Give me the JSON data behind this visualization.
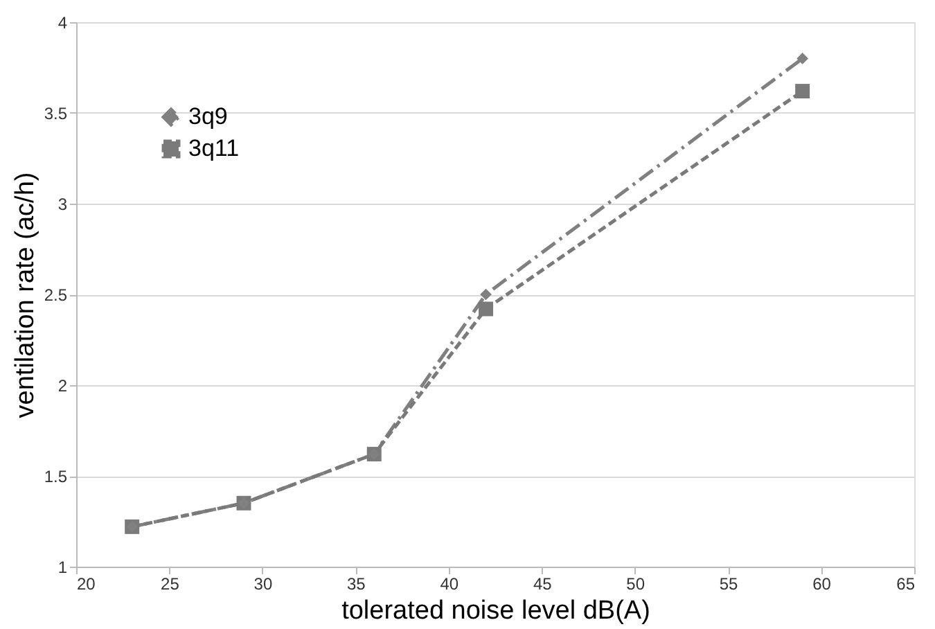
{
  "chart_data": {
    "type": "line",
    "xlabel": "tolerated noise level  dB(A)",
    "ylabel": "ventilation rate  (ac/h)",
    "x": [
      23,
      29,
      36,
      42,
      59
    ],
    "series": [
      {
        "name": "3q9",
        "color": "#808080",
        "values": [
          1.22,
          1.35,
          1.62,
          2.5,
          3.8
        ],
        "marker": "diamond",
        "line_style": "dashdot"
      },
      {
        "name": "3q11",
        "color": "#7a7a7a",
        "values": [
          1.22,
          1.35,
          1.62,
          2.42,
          3.62
        ],
        "marker": "square",
        "line_style": "dashed"
      }
    ],
    "xlim": [
      20,
      65
    ],
    "xticks": [
      20,
      25,
      30,
      35,
      40,
      45,
      50,
      55,
      60,
      65
    ],
    "ylim": [
      1,
      4
    ],
    "yticks": [
      1,
      1.5,
      2,
      2.5,
      3,
      3.5,
      4
    ],
    "grid": "y",
    "legend": "top left"
  }
}
